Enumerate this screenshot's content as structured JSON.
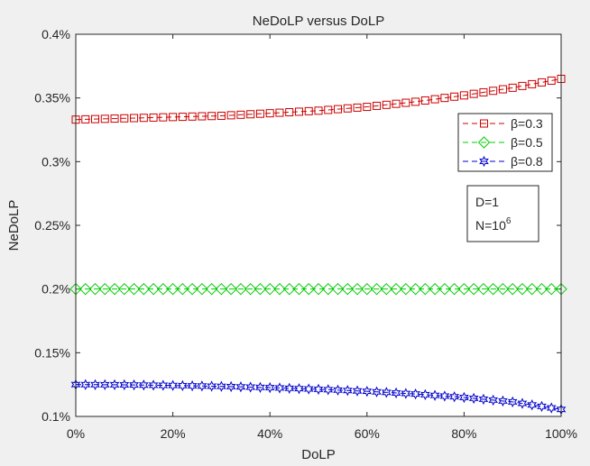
{
  "chart_data": {
    "type": "line",
    "title": "NeDoLP versus DoLP",
    "xlabel": "DoLP",
    "ylabel": "NeDoLP",
    "xlim": [
      0,
      100
    ],
    "ylim": [
      0.1,
      0.4
    ],
    "x_unit": "%",
    "y_unit": "%",
    "x_ticks": [
      0,
      20,
      40,
      60,
      80,
      100
    ],
    "x_tick_labels": [
      "0%",
      "20%",
      "40%",
      "60%",
      "80%",
      "100%"
    ],
    "y_ticks": [
      0.1,
      0.15,
      0.2,
      0.25,
      0.3,
      0.35,
      0.4
    ],
    "y_tick_labels": [
      "0.1%",
      "0.15%",
      "0.2%",
      "0.25%",
      "0.3%",
      "0.35%",
      "0.4%"
    ],
    "grid": false,
    "legend_position": "right",
    "series": [
      {
        "name": "β=0.3",
        "color": "#cc0000",
        "line_style": "dashed",
        "marker": "square",
        "x": [
          0,
          10,
          20,
          30,
          40,
          50,
          60,
          70,
          80,
          90,
          100
        ],
        "values": [
          0.333,
          0.334,
          0.335,
          0.336,
          0.338,
          0.34,
          0.343,
          0.347,
          0.352,
          0.358,
          0.365
        ]
      },
      {
        "name": "β=0.5",
        "color": "#00cc00",
        "line_style": "dashed",
        "marker": "diamond",
        "x": [
          0,
          10,
          20,
          30,
          40,
          50,
          60,
          70,
          80,
          90,
          100
        ],
        "values": [
          0.2,
          0.2,
          0.2,
          0.2,
          0.2,
          0.2,
          0.2,
          0.2,
          0.2,
          0.2,
          0.2
        ]
      },
      {
        "name": "β=0.8",
        "color": "#0000cc",
        "line_style": "dashed",
        "marker": "hexagram",
        "x": [
          0,
          10,
          20,
          30,
          40,
          50,
          60,
          70,
          80,
          90,
          100
        ],
        "values": [
          0.125,
          0.1248,
          0.1243,
          0.1236,
          0.1226,
          0.1213,
          0.1197,
          0.1176,
          0.1149,
          0.1114,
          0.1055
        ]
      }
    ],
    "annotation": {
      "line1": "D=1",
      "line2_base": "N=10",
      "line2_exponent": "6"
    }
  }
}
